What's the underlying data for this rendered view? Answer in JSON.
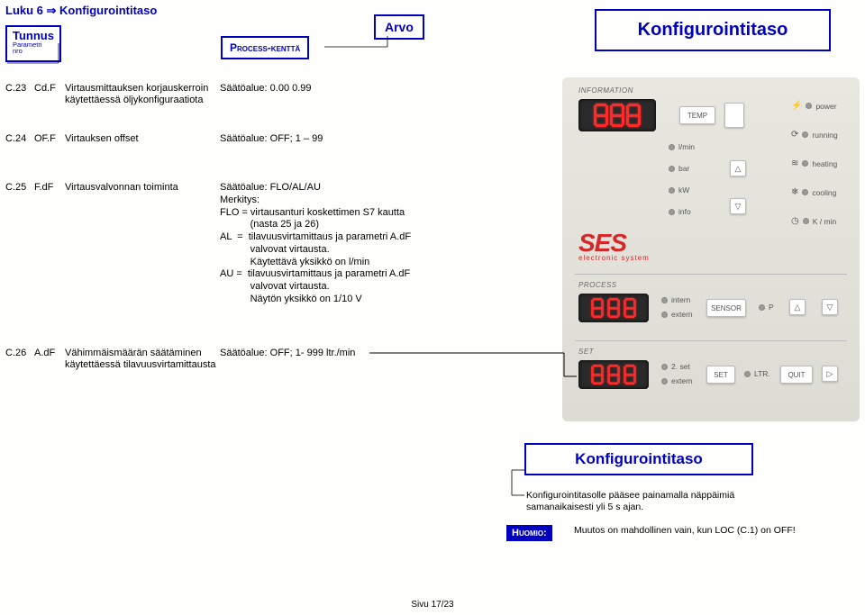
{
  "chapter": "Luku 6 ⇒ Konfigurointitaso",
  "tunnus": {
    "main": "Tunnus",
    "sub1": "Parametri",
    "sub2": "nro"
  },
  "process": "Process-kenttä",
  "arvo": "Arvo",
  "title": "Konfigurointitaso",
  "title2": "Konfigurointitaso",
  "params": [
    {
      "code": "C.23",
      "id": "Cd.F",
      "desc": "Virtausmittauksen korjauskerroin käytettäessä öljykonfiguraatiota",
      "val": "Säätöalue: 0.00   0.99"
    },
    {
      "code": "C.24",
      "id": "OF.F",
      "desc": "Virtauksen offset",
      "val": "Säätöalue: OFF; 1 – 99"
    },
    {
      "code": "C.25",
      "id": "F.dF",
      "desc": "Virtausvalvonnan toiminta",
      "val_lines": [
        "Säätöalue: FLO/AL/AU",
        "Merkitys:",
        "FLO = virtausanturi koskettimen S7 kautta",
        "           (nasta 25 ja 26)",
        "AL  =  tilavuusvirtamittaus ja parametri A.dF",
        "           valvovat virtausta.",
        "           Käytettävä yksikkö on l/min",
        "AU =  tilavuusvirtamittaus ja parametri A.dF",
        "           valvovat virtausta.",
        "           Näytön yksikkö on 1/10 V"
      ]
    },
    {
      "code": "C.26",
      "id": "A.dF",
      "desc": "Vähimmäismäärän säätäminen käytettäessä tilavuusvirtamittausta",
      "val": "Säätöalue: OFF; 1-  999 ltr./min"
    }
  ],
  "notes": {
    "access": "Konfigurointitasolle pääsee painamalla näppäimiä samanaikaisesti yli 5 s ajan.",
    "huomio_label": "Huomio:",
    "huomio_text": "Muutos on mahdollinen vain, kun LOC (C.1) on OFF!"
  },
  "footer": "Sivu 17/23",
  "device": {
    "panel_title": "INFORMATION",
    "temp_btn": "TEMP",
    "indicators_col1": [
      "l/min",
      "bar",
      "kW",
      "info"
    ],
    "indicators_col2_right": [
      "power",
      "running",
      "heating",
      "cooling",
      "K / min"
    ],
    "section_process": "PROCESS",
    "section_set": "SET",
    "labels_process": [
      "intern",
      "extern",
      "SENSOR",
      "P"
    ],
    "labels_set": [
      "2. set",
      "extern",
      "SET",
      "LTR.",
      "QUIT"
    ],
    "ses": "SES",
    "ses_sub": "electronic  system",
    "led_color": "#ff2a2a",
    "panel_bg": "#e4e4dc"
  },
  "colors": {
    "blue": "#0000c0",
    "red": "#d62828"
  }
}
